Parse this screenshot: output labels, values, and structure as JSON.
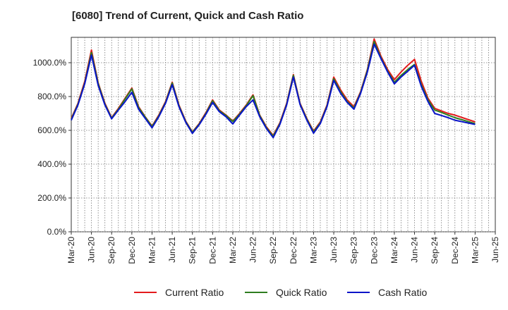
{
  "chart_data": {
    "type": "line",
    "title": "[6080]  Trend of Current, Quick and Cash Ratio",
    "xlabel": "",
    "ylabel": "",
    "ylim": [
      0,
      1150
    ],
    "y_ticks": [
      0,
      200,
      400,
      600,
      800,
      1000
    ],
    "y_tick_labels": [
      "0.0%",
      "200.0%",
      "400.0%",
      "600.0%",
      "800.0%",
      "1000.0%"
    ],
    "x_tick_labels": [
      "Mar-20",
      "Jun-20",
      "Sep-20",
      "Dec-20",
      "Mar-21",
      "Jun-21",
      "Sep-21",
      "Dec-21",
      "Mar-22",
      "Jun-22",
      "Sep-22",
      "Dec-22",
      "Mar-23",
      "Jun-23",
      "Sep-23",
      "Dec-23",
      "Mar-24",
      "Jun-24",
      "Sep-24",
      "Dec-24",
      "Mar-25",
      "Jun-25"
    ],
    "x_range": [
      0,
      63
    ],
    "grid": true,
    "legend_position": "bottom",
    "series": [
      {
        "name": "Current Ratio",
        "color": "#e31a1c",
        "x": [
          0,
          1,
          2,
          3,
          4,
          5,
          6,
          7,
          8,
          9,
          10,
          11,
          12,
          13,
          14,
          15,
          16,
          17,
          18,
          19,
          20,
          21,
          22,
          23,
          24,
          25,
          26,
          27,
          28,
          29,
          30,
          31,
          32,
          33,
          34,
          35,
          36,
          37,
          38,
          39,
          40,
          41,
          42,
          43,
          44,
          45,
          46,
          47,
          48,
          49,
          50,
          51,
          52,
          53,
          54,
          55,
          56,
          57,
          60
        ],
        "values": [
          670,
          760,
          890,
          1075,
          880,
          760,
          675,
          730,
          790,
          850,
          740,
          680,
          625,
          690,
          770,
          885,
          750,
          655,
          590,
          640,
          705,
          780,
          720,
          690,
          655,
          700,
          750,
          810,
          690,
          620,
          570,
          645,
          760,
          930,
          760,
          670,
          595,
          650,
          750,
          915,
          840,
          780,
          740,
          830,
          960,
          1140,
          1040,
          960,
          900,
          945,
          985,
          1020,
          890,
          790,
          730,
          715,
          700,
          690,
          650
        ]
      },
      {
        "name": "Quick Ratio",
        "color": "#2e7d1f",
        "x": [
          0,
          1,
          2,
          3,
          4,
          5,
          6,
          7,
          8,
          9,
          10,
          11,
          12,
          13,
          14,
          15,
          16,
          17,
          18,
          19,
          20,
          21,
          22,
          23,
          24,
          25,
          26,
          27,
          28,
          29,
          30,
          31,
          32,
          33,
          34,
          35,
          36,
          37,
          38,
          39,
          40,
          41,
          42,
          43,
          44,
          45,
          46,
          47,
          48,
          49,
          50,
          51,
          52,
          53,
          54,
          55,
          56,
          57,
          60
        ],
        "values": [
          665,
          755,
          880,
          1060,
          875,
          755,
          672,
          725,
          785,
          845,
          735,
          678,
          622,
          685,
          765,
          880,
          745,
          652,
          588,
          637,
          700,
          775,
          716,
          687,
          652,
          696,
          746,
          805,
          687,
          615,
          565,
          640,
          755,
          925,
          756,
          666,
          590,
          645,
          745,
          905,
          830,
          770,
          732,
          825,
          955,
          1125,
          1030,
          950,
          885,
          925,
          960,
          990,
          870,
          780,
          720,
          706,
          690,
          675,
          640
        ]
      },
      {
        "name": "Cash Ratio",
        "color": "#0a14c8",
        "x": [
          0,
          1,
          2,
          3,
          4,
          5,
          6,
          7,
          8,
          9,
          10,
          11,
          12,
          13,
          14,
          15,
          16,
          17,
          18,
          19,
          20,
          21,
          22,
          23,
          24,
          25,
          26,
          27,
          28,
          29,
          30,
          31,
          32,
          33,
          34,
          35,
          36,
          37,
          38,
          39,
          40,
          41,
          42,
          43,
          44,
          45,
          46,
          47,
          48,
          49,
          50,
          51,
          52,
          53,
          54,
          55,
          56,
          57,
          60
        ],
        "values": [
          660,
          750,
          875,
          1045,
          865,
          750,
          668,
          720,
          770,
          825,
          725,
          670,
          615,
          680,
          760,
          870,
          740,
          648,
          582,
          633,
          695,
          765,
          710,
          680,
          638,
          690,
          740,
          780,
          680,
          610,
          557,
          635,
          750,
          915,
          752,
          660,
          583,
          640,
          740,
          895,
          820,
          765,
          725,
          820,
          945,
          1110,
          1025,
          945,
          875,
          915,
          950,
          985,
          860,
          770,
          700,
          688,
          675,
          660,
          635
        ]
      }
    ]
  }
}
